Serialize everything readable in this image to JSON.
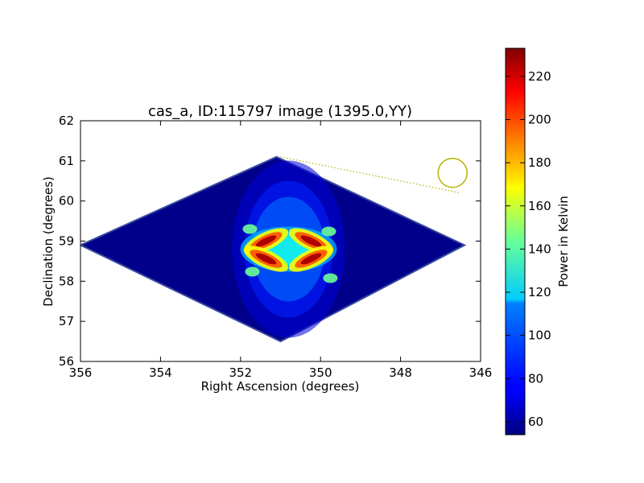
{
  "chart_data": {
    "type": "heatmap",
    "title": "cas_a, ID:115797 image (1395.0,YY)",
    "xlabel": "Right Ascension (degrees)",
    "ylabel": "Declination (degrees)",
    "xlim": [
      356,
      346
    ],
    "ylim": [
      56,
      62
    ],
    "x_ticks": [
      "356",
      "354",
      "352",
      "350",
      "348",
      "346"
    ],
    "y_ticks": [
      "56",
      "57",
      "58",
      "59",
      "60",
      "61",
      "62"
    ],
    "colorbar": {
      "label": "Power in Kelvin",
      "range": [
        54,
        233
      ],
      "ticks": [
        "60",
        "80",
        "100",
        "120",
        "140",
        "160",
        "180",
        "200",
        "220"
      ],
      "colormap": "jet"
    },
    "footprint_corners_deg": [
      [
        356,
        58.9
      ],
      [
        351.1,
        61.1
      ],
      [
        346.4,
        58.9
      ],
      [
        351.0,
        56.5
      ]
    ],
    "background_level_K": 56,
    "source_center_deg": [
      350.8,
      58.8
    ],
    "peak_level_K": 225,
    "beam_circle_center_deg": [
      346.7,
      60.7
    ],
    "beam_line_deg": [
      [
        351.0,
        61.1
      ],
      [
        346.5,
        60.2
      ]
    ],
    "grid": false,
    "legend": "none"
  }
}
